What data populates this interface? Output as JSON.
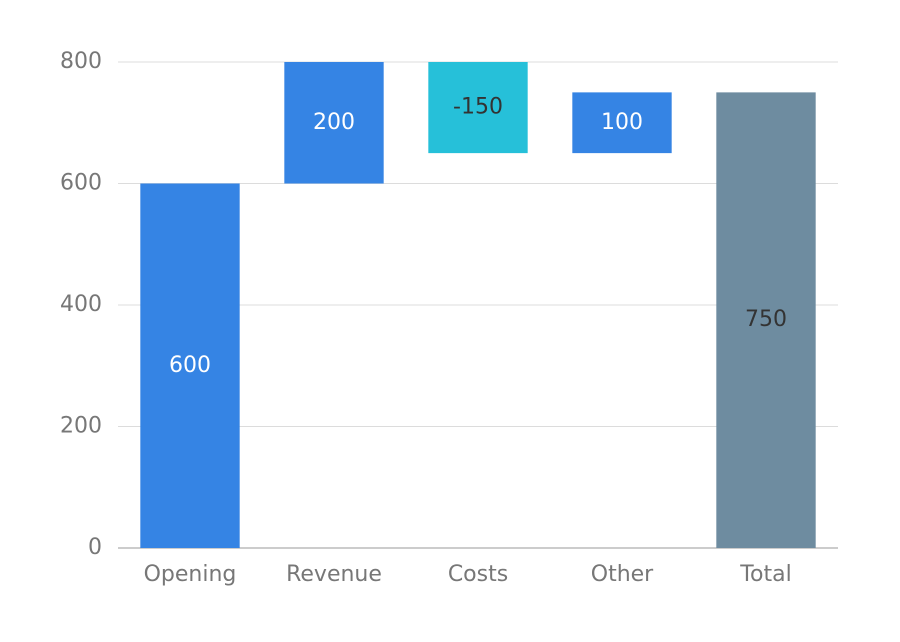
{
  "chart_data": {
    "type": "waterfall",
    "categories": [
      "Opening",
      "Revenue",
      "Costs",
      "Other",
      "Total"
    ],
    "values": [
      600,
      200,
      -150,
      100,
      750
    ],
    "last_is_total": true,
    "increase_color": "#3584e4",
    "decrease_color": "#26c0d9",
    "total_color": "#6e8ca0",
    "ylim": [
      0,
      800
    ],
    "yticks": [
      0,
      200,
      400,
      600,
      800
    ],
    "grid": true
  }
}
